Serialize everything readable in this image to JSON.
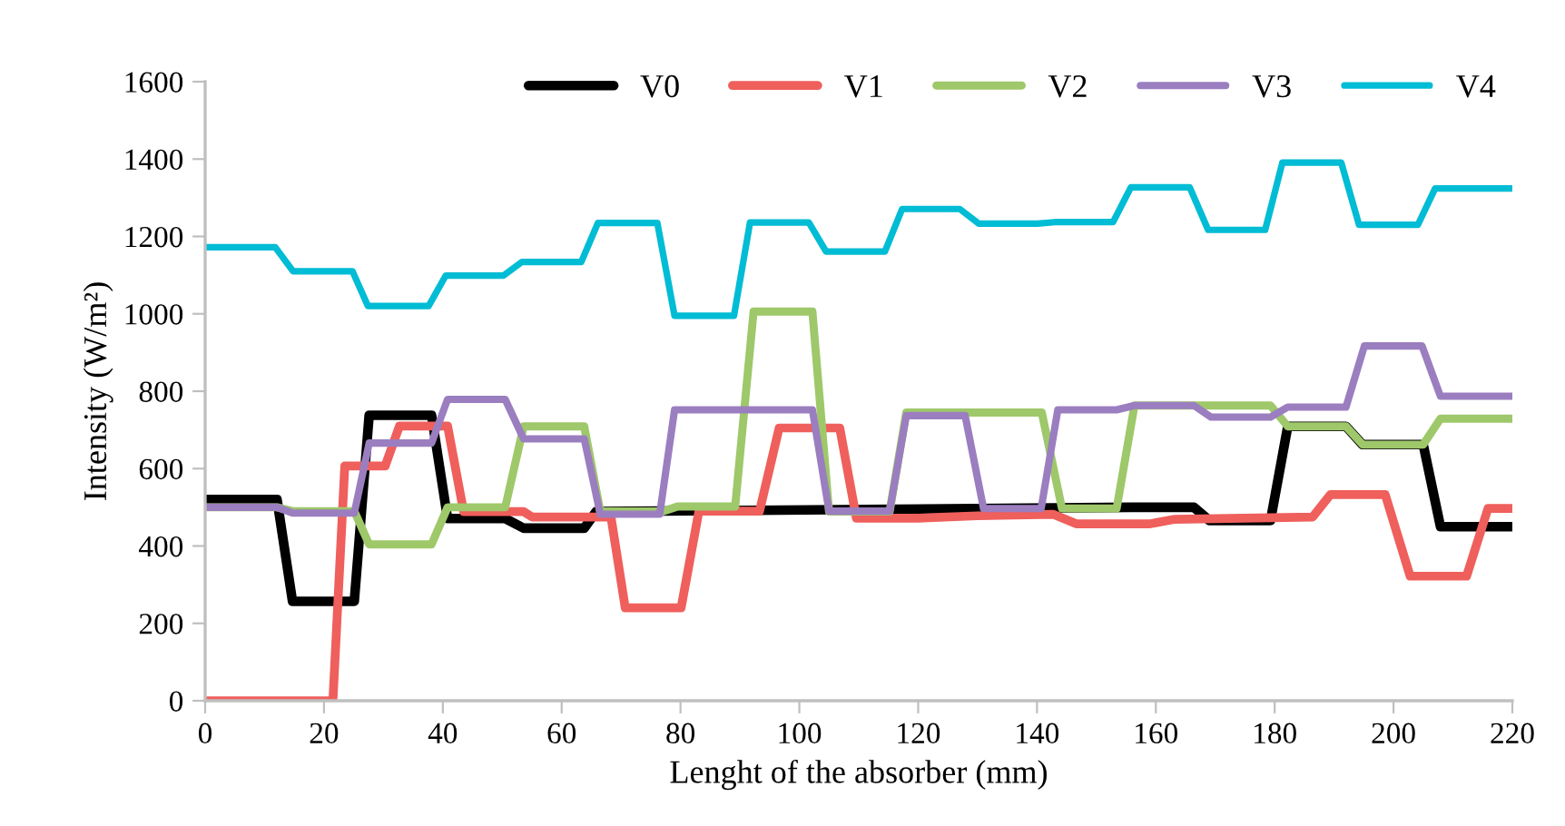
{
  "chart_data": {
    "type": "line",
    "xlabel": "Lenght of the absorber (mm)",
    "ylabel": "Intensity (W/m²)",
    "xlim": [
      0,
      220
    ],
    "xticks": [
      0,
      20,
      40,
      60,
      80,
      100,
      120,
      140,
      160,
      180,
      200,
      220
    ],
    "ylim": [
      0,
      1600
    ],
    "yticks": [
      0,
      200,
      400,
      600,
      800,
      1000,
      1200,
      1400,
      1600
    ],
    "grid": false,
    "legend": "top right",
    "marker": "none",
    "line_style": "solid",
    "series": [
      {
        "name": "V0",
        "color": "#000000",
        "x": [
          0,
          12.1,
          14.7,
          25.1,
          27.6,
          38.1,
          40.8,
          50.5,
          53.6,
          63.8,
          65.8,
          156,
          166.4,
          169,
          179.3,
          182.2,
          192,
          194.8,
          205,
          207.9,
          220
        ],
        "values": [
          520,
          520,
          257,
          257,
          738,
          738,
          471,
          471,
          446,
          446,
          489,
          500,
          500,
          466,
          466,
          709,
          709,
          662,
          662,
          450,
          450
        ]
      },
      {
        "name": "V1",
        "color": "#ef5f5c",
        "x": [
          0,
          21.5,
          23.5,
          30.3,
          32.7,
          40.8,
          43.5,
          53.6,
          55,
          68.3,
          70.7,
          80.1,
          83.1,
          93.3,
          96.6,
          106.8,
          109.6,
          120,
          130,
          142.7,
          146.7,
          158.9,
          163.2,
          186.4,
          189.4,
          198.6,
          202.8,
          212.3,
          215.9,
          220
        ],
        "values": [
          0,
          0,
          607,
          607,
          710,
          710,
          489,
          489,
          475,
          475,
          240,
          240,
          490,
          490,
          705,
          705,
          472,
          472,
          478,
          482,
          457,
          457,
          469,
          475,
          533,
          533,
          322,
          322,
          497,
          497
        ]
      },
      {
        "name": "V2",
        "color": "#9ec86a",
        "x": [
          0,
          12.1,
          14.7,
          25.1,
          27.6,
          38.1,
          40.8,
          50.5,
          53.6,
          63.8,
          66.5,
          77,
          79.5,
          89.2,
          92.3,
          102.2,
          105,
          115.2,
          118,
          140.8,
          144.2,
          153.4,
          156.4,
          179.3,
          182.2,
          192,
          194.8,
          205,
          207.9,
          220
        ],
        "values": [
          500,
          500,
          490,
          490,
          404,
          404,
          500,
          500,
          709,
          709,
          489,
          489,
          502,
          502,
          1006,
          1006,
          489,
          489,
          745,
          745,
          497,
          497,
          763,
          763,
          709,
          709,
          662,
          662,
          729,
          729
        ]
      },
      {
        "name": "V3",
        "color": "#9b7ec0",
        "x": [
          0,
          12.1,
          14.7,
          25.1,
          27.6,
          38.1,
          40.8,
          50.5,
          53.6,
          63.8,
          66.5,
          76.5,
          79,
          102.2,
          105,
          115.2,
          118,
          127.9,
          131,
          140.7,
          143.5,
          153.4,
          156.4,
          166.4,
          169.3,
          179.3,
          182.2,
          192,
          195.1,
          204.8,
          207.9,
          220
        ],
        "values": [
          500,
          500,
          485,
          485,
          666,
          666,
          779,
          779,
          677,
          677,
          482,
          482,
          752,
          752,
          490,
          490,
          737,
          737,
          497,
          497,
          752,
          752,
          763,
          763,
          733,
          733,
          759,
          759,
          917,
          917,
          787,
          787
        ]
      },
      {
        "name": "V4",
        "color": "#00bcd4",
        "x": [
          0,
          11.8,
          14.8,
          24.8,
          27.4,
          37.6,
          40.5,
          50.2,
          53.3,
          63.3,
          66.1,
          76.1,
          79,
          89,
          91.7,
          101.6,
          104.5,
          114.4,
          117.3,
          127,
          130.2,
          140.1,
          143,
          152.8,
          155.8,
          165.7,
          168.8,
          178.4,
          181.3,
          191.2,
          194.2,
          204.1,
          207,
          220
        ],
        "values": [
          1172,
          1172,
          1110,
          1110,
          1020,
          1020,
          1099,
          1099,
          1134,
          1134,
          1235,
          1235,
          995,
          995,
          1236,
          1236,
          1161,
          1161,
          1271,
          1271,
          1233,
          1233,
          1237,
          1237,
          1327,
          1327,
          1217,
          1217,
          1391,
          1391,
          1230,
          1230,
          1324,
          1324
        ]
      }
    ]
  }
}
